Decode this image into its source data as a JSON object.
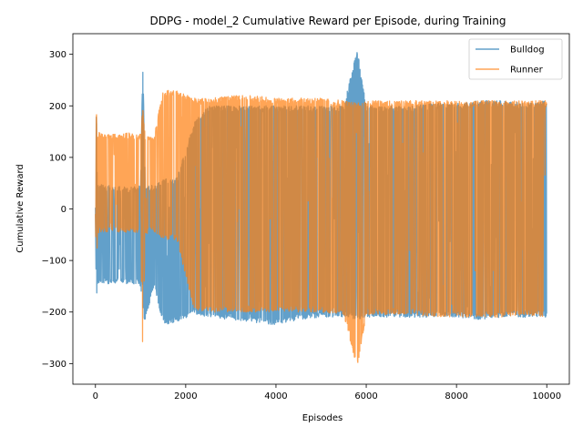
{
  "chart_data": {
    "type": "line",
    "title": "DDPG - model_2 Cumulative Reward per Episode, during Training",
    "xlabel": "Episodes",
    "ylabel": "Cumulative Reward",
    "xlim": [
      -500,
      10500
    ],
    "ylim": [
      -340,
      340
    ],
    "xticks": [
      0,
      2000,
      4000,
      6000,
      8000,
      10000
    ],
    "yticks": [
      -300,
      -200,
      -100,
      0,
      100,
      200,
      300
    ],
    "grid": false,
    "legend_position": "top-right",
    "series": [
      {
        "name": "Bulldog",
        "color": "#1f77b4",
        "opacity": 0.7,
        "x": [
          0,
          20,
          40,
          100,
          400,
          800,
          1000,
          1050,
          1100,
          1300,
          1500,
          1800,
          2200,
          2500,
          3000,
          3500,
          4000,
          4500,
          5000,
          5500,
          5800,
          6000,
          6500,
          7000,
          7500,
          8000,
          8500,
          9000,
          9500,
          10000
        ],
        "upper": [
          0,
          200,
          45,
          48,
          45,
          42,
          45,
          290,
          48,
          45,
          60,
          60,
          170,
          200,
          200,
          200,
          200,
          200,
          200,
          200,
          310,
          200,
          200,
          200,
          205,
          205,
          210,
          210,
          205,
          210
        ],
        "lower": [
          0,
          -200,
          -145,
          -145,
          -145,
          -145,
          -150,
          -200,
          -220,
          -150,
          -225,
          -220,
          -205,
          -210,
          -215,
          -220,
          -225,
          -215,
          -210,
          -210,
          -215,
          -210,
          -210,
          -210,
          -210,
          -210,
          -215,
          -210,
          -210,
          -210
        ]
      },
      {
        "name": "Runner",
        "color": "#ff7f0e",
        "opacity": 0.7,
        "x": [
          0,
          20,
          40,
          100,
          400,
          800,
          1000,
          1050,
          1100,
          1300,
          1500,
          1800,
          2200,
          2500,
          3000,
          3500,
          4000,
          4500,
          5000,
          5500,
          5800,
          6000,
          6500,
          7000,
          7500,
          8000,
          8500,
          9000,
          9500,
          10000
        ],
        "upper": [
          0,
          200,
          150,
          148,
          145,
          148,
          145,
          200,
          145,
          145,
          230,
          230,
          215,
          215,
          220,
          220,
          215,
          215,
          215,
          210,
          205,
          210,
          210,
          210,
          210,
          210,
          210,
          210,
          210,
          210
        ],
        "lower": [
          0,
          -200,
          -50,
          -45,
          -45,
          -48,
          -45,
          -290,
          -50,
          -45,
          -60,
          -60,
          -200,
          -200,
          -200,
          -200,
          -200,
          -200,
          -200,
          -205,
          -310,
          -205,
          -205,
          -205,
          -210,
          -210,
          -210,
          -210,
          -205,
          -210
        ]
      }
    ]
  }
}
